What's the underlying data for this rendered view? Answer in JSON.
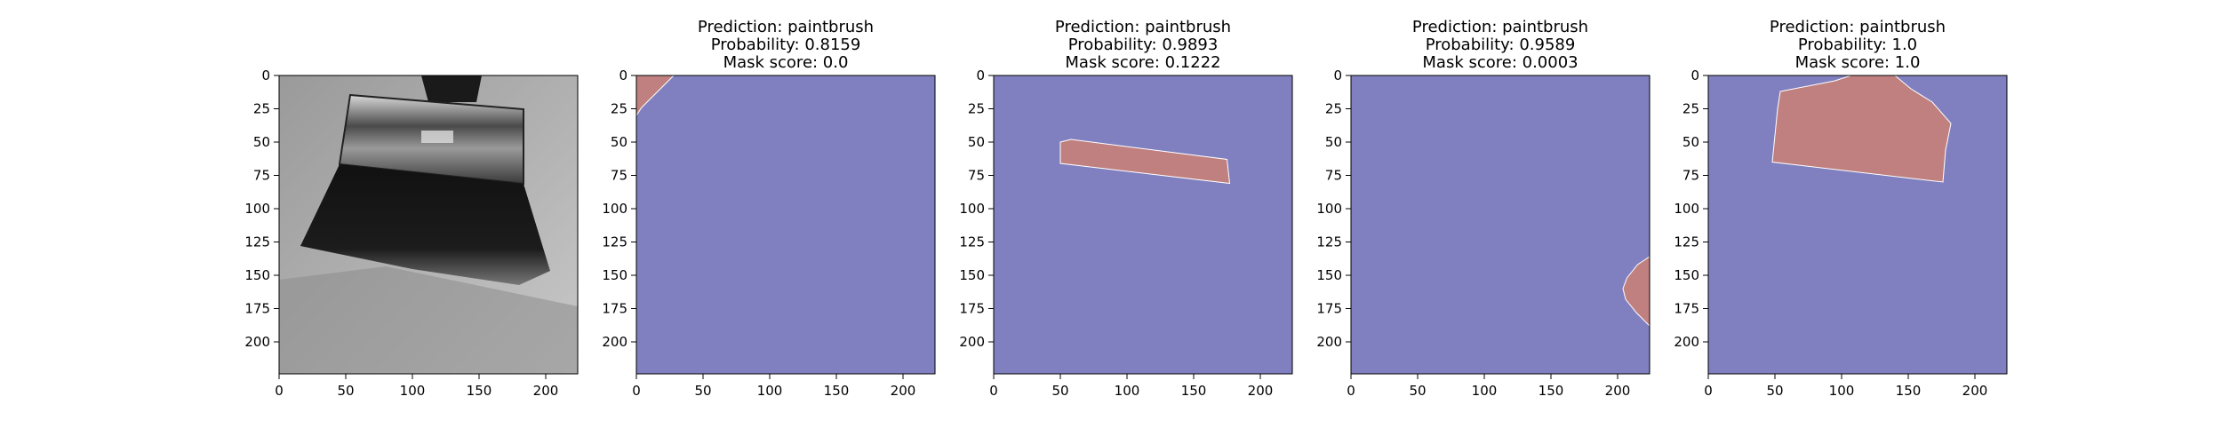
{
  "chart_data": [
    {
      "type": "image",
      "content": "grayscale photo of a paintbrush",
      "xlim": [
        0,
        224
      ],
      "ylim": [
        0,
        224
      ],
      "x_ticks": [
        0,
        50,
        100,
        150,
        200
      ],
      "y_ticks": [
        0,
        25,
        50,
        75,
        100,
        125,
        150,
        175,
        200
      ]
    },
    {
      "type": "heatmap",
      "title_lines": [
        "Prediction: paintbrush",
        "Probability: 0.8159",
        "Mask score: 0.0"
      ],
      "xlim": [
        0,
        224
      ],
      "ylim": [
        0,
        224
      ],
      "x_ticks": [
        0,
        50,
        100,
        150,
        200
      ],
      "y_ticks": [
        0,
        25,
        50,
        75,
        100,
        125,
        150,
        175,
        200
      ],
      "background_color": "#8080c0",
      "mask_color": "#c08080",
      "mask_region": [
        [
          0,
          0
        ],
        [
          28,
          0
        ],
        [
          22,
          6
        ],
        [
          16,
          12
        ],
        [
          10,
          18
        ],
        [
          4,
          24
        ],
        [
          0,
          30
        ]
      ]
    },
    {
      "type": "heatmap",
      "title_lines": [
        "Prediction: paintbrush",
        "Probability: 0.9893",
        "Mask score: 0.1222"
      ],
      "xlim": [
        0,
        224
      ],
      "ylim": [
        0,
        224
      ],
      "x_ticks": [
        0,
        50,
        100,
        150,
        200
      ],
      "y_ticks": [
        0,
        25,
        50,
        75,
        100,
        125,
        150,
        175,
        200
      ],
      "background_color": "#8080c0",
      "mask_color": "#c08080",
      "mask_region": [
        [
          50,
          50
        ],
        [
          58,
          48
        ],
        [
          175,
          63
        ],
        [
          177,
          81
        ],
        [
          50,
          66
        ]
      ]
    },
    {
      "type": "heatmap",
      "title_lines": [
        "Prediction: paintbrush",
        "Probability: 0.9589",
        "Mask score: 0.0003"
      ],
      "xlim": [
        0,
        224
      ],
      "ylim": [
        0,
        224
      ],
      "x_ticks": [
        0,
        50,
        100,
        150,
        200
      ],
      "y_ticks": [
        0,
        25,
        50,
        75,
        100,
        125,
        150,
        175,
        200
      ],
      "background_color": "#8080c0",
      "mask_color": "#c08080",
      "mask_region": [
        [
          224,
          136
        ],
        [
          215,
          142
        ],
        [
          207,
          152
        ],
        [
          204,
          160
        ],
        [
          206,
          168
        ],
        [
          214,
          178
        ],
        [
          224,
          188
        ]
      ]
    },
    {
      "type": "heatmap",
      "title_lines": [
        "Prediction: paintbrush",
        "Probability: 1.0",
        "Mask score: 1.0"
      ],
      "xlim": [
        0,
        224
      ],
      "ylim": [
        0,
        224
      ],
      "x_ticks": [
        0,
        50,
        100,
        150,
        200
      ],
      "y_ticks": [
        0,
        25,
        50,
        75,
        100,
        125,
        150,
        175,
        200
      ],
      "background_color": "#8080c0",
      "mask_color": "#c08080",
      "mask_region": [
        [
          54,
          12
        ],
        [
          95,
          4
        ],
        [
          107,
          0
        ],
        [
          140,
          0
        ],
        [
          152,
          10
        ],
        [
          168,
          20
        ],
        [
          182,
          36
        ],
        [
          178,
          56
        ],
        [
          176,
          80
        ],
        [
          48,
          65
        ],
        [
          50,
          45
        ],
        [
          52,
          25
        ]
      ]
    }
  ]
}
